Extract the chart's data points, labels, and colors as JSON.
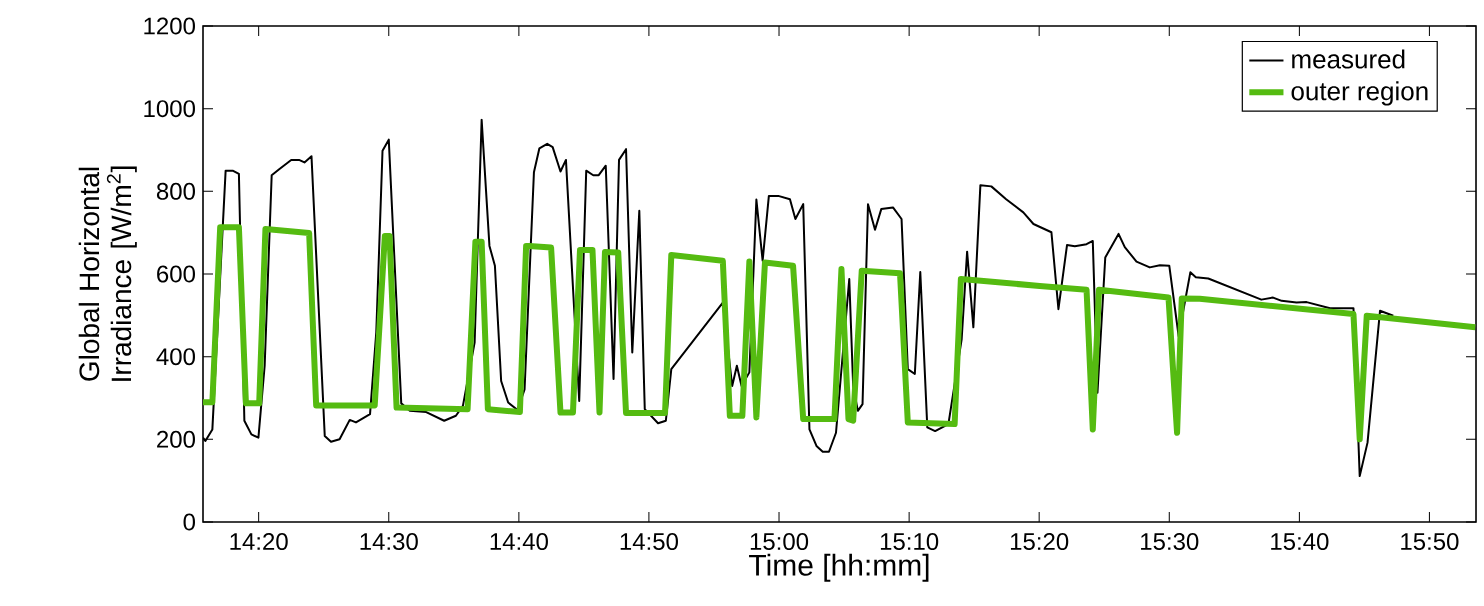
{
  "chart_data": {
    "type": "line",
    "xlabel": "Time [hh:mm]",
    "ylabel": "Global Horizontal Irradiance [W/m$^{2}$]",
    "xlim": [
      14.262,
      15.893
    ],
    "ylim": [
      0,
      1200
    ],
    "xticks": [
      {
        "value": 14.3333,
        "label": "14:20"
      },
      {
        "value": 14.5,
        "label": "14:30"
      },
      {
        "value": 14.6667,
        "label": "14:40"
      },
      {
        "value": 14.8333,
        "label": "14:50"
      },
      {
        "value": 15.0,
        "label": "15:00"
      },
      {
        "value": 15.1667,
        "label": "15:10"
      },
      {
        "value": 15.3333,
        "label": "15:20"
      },
      {
        "value": 15.5,
        "label": "15:30"
      },
      {
        "value": 15.6667,
        "label": "15:40"
      },
      {
        "value": 15.8333,
        "label": "15:50"
      }
    ],
    "yticks": [
      0,
      200,
      400,
      600,
      800,
      1000,
      1200
    ],
    "grid": false,
    "legend": "top right",
    "series": [
      {
        "name": "measured",
        "color": "#000000",
        "x": [
          14.262,
          14.265,
          14.274,
          14.291,
          14.3,
          14.308,
          14.315,
          14.324,
          14.333,
          14.341,
          14.35,
          14.36,
          14.375,
          14.385,
          14.392,
          14.401,
          14.418,
          14.426,
          14.437,
          14.45,
          14.458,
          14.476,
          14.484,
          14.492,
          14.5,
          14.516,
          14.527,
          14.548,
          14.571,
          14.586,
          14.595,
          14.61,
          14.619,
          14.629,
          14.636,
          14.644,
          14.653,
          14.665,
          14.674,
          14.686,
          14.693,
          14.703,
          14.71,
          14.72,
          14.727,
          14.744,
          14.753,
          14.762,
          14.769,
          14.778,
          14.788,
          14.795,
          14.804,
          14.812,
          14.821,
          14.828,
          14.845,
          14.855,
          14.862,
          14.928,
          14.94,
          14.946,
          14.952,
          14.962,
          14.971,
          14.979,
          14.987,
          14.999,
          15.014,
          15.021,
          15.031,
          15.039,
          15.048,
          15.056,
          15.064,
          15.073,
          15.09,
          15.095,
          15.101,
          15.107,
          15.114,
          15.123,
          15.131,
          15.146,
          15.157,
          15.165,
          15.174,
          15.181,
          15.19,
          15.2,
          15.217,
          15.234,
          15.241,
          15.249,
          15.258,
          15.272,
          15.291,
          15.313,
          15.326,
          15.349,
          15.358,
          15.369,
          15.379,
          15.394,
          15.402,
          15.408,
          15.418,
          15.435,
          15.443,
          15.458,
          15.475,
          15.488,
          15.5,
          15.512,
          15.527,
          15.534,
          15.55,
          15.618,
          15.633,
          15.644,
          15.663,
          15.676,
          15.706,
          15.736,
          15.744,
          15.754,
          15.77,
          15.787
        ],
        "values": [
          204,
          196,
          224,
          850,
          850,
          842,
          245,
          212,
          204,
          378,
          839,
          854,
          876,
          876,
          870,
          885,
          208,
          194,
          200,
          247,
          241,
          261,
          459,
          898,
          925,
          287,
          269,
          266,
          245,
          257,
          281,
          434,
          973,
          668,
          620,
          341,
          289,
          271,
          321,
          846,
          904,
          915,
          907,
          848,
          876,
          293,
          850,
          839,
          839,
          862,
          346,
          876,
          902,
          410,
          753,
          273,
          239,
          245,
          370,
          531,
          329,
          378,
          329,
          362,
          780,
          632,
          789,
          789,
          781,
          733,
          769,
          224,
          184,
          170,
          170,
          216,
          588,
          329,
          269,
          285,
          769,
          707,
          757,
          761,
          733,
          370,
          358,
          605,
          229,
          220,
          237,
          442,
          654,
          471,
          815,
          812,
          781,
          749,
          721,
          701,
          515,
          670,
          667,
          672,
          680,
          313,
          640,
          697,
          665,
          630,
          616,
          621,
          620,
          450,
          604,
          592,
          589,
          538,
          543,
          535,
          531,
          532,
          517,
          517,
          111,
          192,
          511,
          499
        ]
      },
      {
        "name": "outer region",
        "color": "#55bb11",
        "x": [
          14.262,
          14.274,
          14.284,
          14.308,
          14.317,
          14.334,
          14.342,
          14.398,
          14.407,
          14.482,
          14.495,
          14.501,
          14.51,
          14.601,
          14.611,
          14.619,
          14.627,
          14.668,
          14.676,
          14.68,
          14.708,
          14.72,
          14.736,
          14.745,
          14.761,
          14.77,
          14.777,
          14.794,
          14.804,
          14.854,
          14.862,
          14.928,
          14.937,
          14.953,
          14.962,
          14.971,
          14.982,
          15.018,
          15.031,
          15.071,
          15.08,
          15.089,
          15.095,
          15.106,
          15.155,
          15.165,
          15.225,
          15.233,
          15.334,
          15.394,
          15.402,
          15.41,
          15.499,
          15.51,
          15.516,
          15.539,
          15.736,
          15.744,
          15.753,
          15.892
        ],
        "values": [
          290,
          290,
          713,
          713,
          287,
          287,
          709,
          699,
          282,
          282,
          692,
          692,
          277,
          273,
          678,
          678,
          273,
          266,
          668,
          668,
          664,
          265,
          265,
          658,
          658,
          265,
          653,
          652,
          264,
          264,
          646,
          632,
          257,
          257,
          630,
          253,
          628,
          620,
          249,
          249,
          612,
          249,
          245,
          608,
          602,
          241,
          237,
          588,
          571,
          562,
          224,
          562,
          543,
          216,
          541,
          540,
          503,
          200,
          499,
          471
        ]
      }
    ]
  }
}
